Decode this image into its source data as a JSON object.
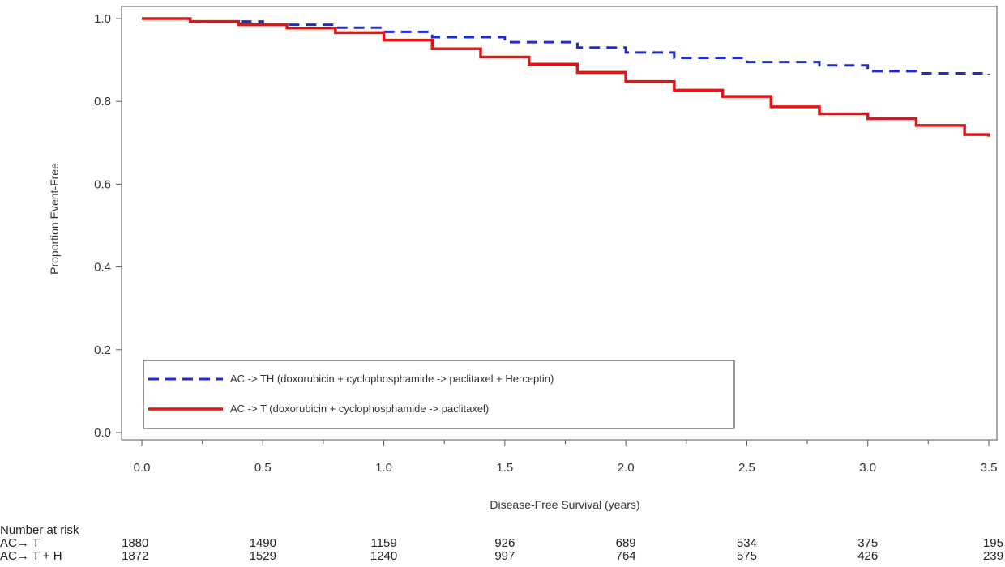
{
  "chart_data": {
    "type": "line",
    "xlabel": "Disease-Free Survival (years)",
    "ylabel": "Proportion Event-Free",
    "xlim": [
      0,
      3.5
    ],
    "ylim": [
      0,
      1.0
    ],
    "x_ticks": [
      "0.0",
      "0.5",
      "1.0",
      "1.5",
      "2.0",
      "2.5",
      "3.0",
      "3.5"
    ],
    "y_ticks": [
      "0.0",
      "0.2",
      "0.4",
      "0.6",
      "0.8",
      "1.0"
    ],
    "grid": false,
    "legend_position": "bottom-left",
    "series": [
      {
        "name": "AC -> TH (doxorubicin + cyclophosphamide -> paclitaxel + Herceptin)",
        "color": "#1f2bd0",
        "line_style": "dashed",
        "x": [
          0,
          0.2,
          0.5,
          0.8,
          1.0,
          1.2,
          1.5,
          1.8,
          2.0,
          2.2,
          2.5,
          2.8,
          3.0,
          3.2,
          3.5
        ],
        "y": [
          1.0,
          0.993,
          0.985,
          0.978,
          0.968,
          0.955,
          0.943,
          0.93,
          0.918,
          0.905,
          0.895,
          0.887,
          0.873,
          0.868,
          0.865
        ]
      },
      {
        "name": "AC -> T (doxorubicin + cyclophosphamide -> paclitaxel)",
        "color": "#e01515",
        "line_style": "solid",
        "x": [
          0,
          0.2,
          0.4,
          0.6,
          0.8,
          1.0,
          1.2,
          1.4,
          1.6,
          1.8,
          2.0,
          2.2,
          2.4,
          2.6,
          2.8,
          3.0,
          3.2,
          3.4,
          3.5
        ],
        "y": [
          1.0,
          0.993,
          0.985,
          0.977,
          0.966,
          0.948,
          0.927,
          0.907,
          0.89,
          0.87,
          0.848,
          0.827,
          0.812,
          0.787,
          0.77,
          0.758,
          0.742,
          0.72,
          0.715
        ]
      }
    ],
    "risk_table": {
      "title": "Number at risk",
      "rows": [
        {
          "label": "AC→ T",
          "values": [
            "1880",
            "1490",
            "1159",
            "926",
            "689",
            "534",
            "375",
            "195"
          ]
        },
        {
          "label": "AC→ T + H",
          "values": [
            "1872",
            "1529",
            "1240",
            "997",
            "764",
            "575",
            "426",
            "239"
          ]
        }
      ]
    }
  }
}
